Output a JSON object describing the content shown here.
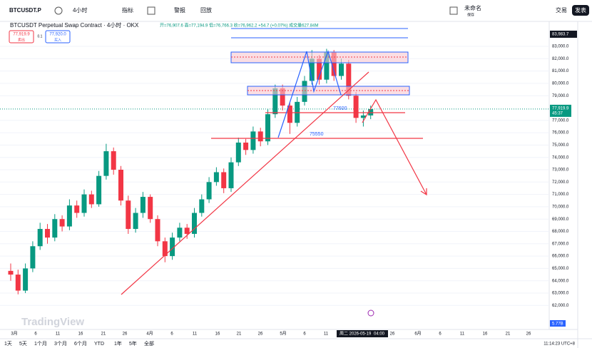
{
  "toolbar": {
    "symbol": "BTCUSDT.P",
    "interval": "4小时",
    "indicators": "指标",
    "alerts": "警报",
    "replay": "回放",
    "layout_name": "未命名",
    "save": "保存",
    "trade": "交易",
    "publish": "发表"
  },
  "legend": {
    "title": "BTCUSDT Perpetual Swap Contract · 4小时 · OKX",
    "ohlc": "开=76,907.6 高=77,194.9 低=76,766.3 收=76,962.2 +54.7 (+0.07%) 成交量627.84M"
  },
  "trade_buttons": {
    "sell_price": "77,919.9",
    "sell": "卖出",
    "spread": "0.1",
    "buy_price": "77,920.0",
    "buy": "买入"
  },
  "price_axis": {
    "ticks": [
      {
        "value": 83000,
        "label": "83,000.0"
      },
      {
        "value": 82000,
        "label": "82,000.0"
      },
      {
        "value": 81000,
        "label": "81,000.0"
      },
      {
        "value": 80000,
        "label": "80,000.0"
      },
      {
        "value": 79000,
        "label": "79,000.0"
      },
      {
        "value": 77000,
        "label": "77,000.0"
      },
      {
        "value": 76000,
        "label": "76,000.0"
      },
      {
        "value": 75000,
        "label": "75,000.0"
      },
      {
        "value": 74000,
        "label": "74,000.0"
      },
      {
        "value": 73000,
        "label": "73,000.0"
      },
      {
        "value": 72000,
        "label": "72,000.0"
      },
      {
        "value": 71000,
        "label": "71,000.0"
      },
      {
        "value": 70000,
        "label": "70,000.0"
      },
      {
        "value": 69000,
        "label": "69,000.0"
      },
      {
        "value": 68000,
        "label": "68,000.0"
      },
      {
        "value": 67000,
        "label": "67,000.0"
      },
      {
        "value": 66000,
        "label": "66,000.0"
      },
      {
        "value": 65000,
        "label": "65,000.0"
      },
      {
        "value": 64000,
        "label": "64,000.0"
      },
      {
        "value": 63000,
        "label": "63,000.0"
      },
      {
        "value": 62000,
        "label": "62,000.0"
      }
    ],
    "high_label": {
      "value": 83983.7,
      "label": "83,983.7"
    },
    "last_label": {
      "value": 77919.9,
      "label": "77,919.9"
    },
    "countdown": "45:37",
    "volume_label": "5.77B"
  },
  "time_axis": {
    "labels": [
      "3月",
      "6",
      "11",
      "16",
      "21",
      "26",
      "4月",
      "6",
      "11",
      "16",
      "21",
      "26",
      "5月",
      "6",
      "11",
      "26",
      "6月",
      "6",
      "11",
      "16",
      "21",
      "26"
    ],
    "crosshair": "周二 2026-05-19",
    "crosshair_time": "04:00"
  },
  "annotations": {
    "level_1": "77600",
    "level_2": "75550",
    "watermark": "TradingView"
  },
  "range_buttons": [
    "1天",
    "5天",
    "1个月",
    "3个月",
    "6个月",
    "YTD",
    "1年",
    "5年",
    "全部"
  ],
  "clock": "11:14:23 UTC+8",
  "candles": [
    [
      64800,
      65400,
      64000,
      64500
    ],
    [
      64500,
      64900,
      62900,
      63200
    ],
    [
      63200,
      65400,
      63000,
      65000
    ],
    [
      65000,
      67200,
      64700,
      66800
    ],
    [
      66800,
      68700,
      66500,
      68200
    ],
    [
      68200,
      68600,
      67000,
      67500
    ],
    [
      67500,
      69400,
      67200,
      69000
    ],
    [
      69000,
      69300,
      68000,
      68400
    ],
    [
      68400,
      70600,
      68100,
      70100
    ],
    [
      70100,
      70500,
      69100,
      69500
    ],
    [
      69500,
      71400,
      69200,
      71000
    ],
    [
      71000,
      71300,
      69900,
      70200
    ],
    [
      70200,
      72900,
      70000,
      72500
    ],
    [
      72500,
      75100,
      72200,
      74500
    ],
    [
      74500,
      74800,
      72600,
      73000
    ],
    [
      73000,
      73300,
      70100,
      70500
    ],
    [
      70500,
      70900,
      67800,
      68200
    ],
    [
      68200,
      69900,
      67900,
      69500
    ],
    [
      69500,
      71200,
      69100,
      70800
    ],
    [
      70800,
      71000,
      68700,
      69000
    ],
    [
      69000,
      69300,
      66800,
      67200
    ],
    [
      67200,
      67500,
      65500,
      66000
    ],
    [
      66000,
      67900,
      65700,
      67500
    ],
    [
      67500,
      68700,
      67200,
      68300
    ],
    [
      68300,
      68600,
      67400,
      67800
    ],
    [
      67800,
      69900,
      67500,
      69500
    ],
    [
      69500,
      71000,
      69200,
      70600
    ],
    [
      70600,
      72400,
      70300,
      72000
    ],
    [
      72000,
      73200,
      71700,
      72800
    ],
    [
      72800,
      73100,
      71100,
      71500
    ],
    [
      71500,
      74000,
      71200,
      73600
    ],
    [
      73600,
      75600,
      73300,
      75200
    ],
    [
      75200,
      75500,
      74200,
      74600
    ],
    [
      74600,
      76500,
      74300,
      76100
    ],
    [
      76100,
      76400,
      74900,
      75300
    ],
    [
      75300,
      77900,
      75000,
      77500
    ],
    [
      77500,
      79900,
      77200,
      79600
    ],
    [
      79600,
      79900,
      77800,
      78200
    ],
    [
      78200,
      78500,
      75900,
      76800
    ],
    [
      76800,
      78900,
      76500,
      78500
    ],
    [
      78500,
      80600,
      78200,
      80200
    ],
    [
      80200,
      82700,
      79900,
      82000
    ],
    [
      82000,
      82300,
      79900,
      80300
    ],
    [
      80300,
      82800,
      80000,
      82500
    ],
    [
      82500,
      82700,
      80200,
      80600
    ],
    [
      80600,
      82000,
      80300,
      81600
    ],
    [
      81600,
      81900,
      78700,
      79000
    ],
    [
      79000,
      79300,
      76800,
      77200
    ],
    [
      77200,
      77800,
      76500,
      77400
    ],
    [
      77400,
      78200,
      77100,
      77920
    ]
  ]
}
